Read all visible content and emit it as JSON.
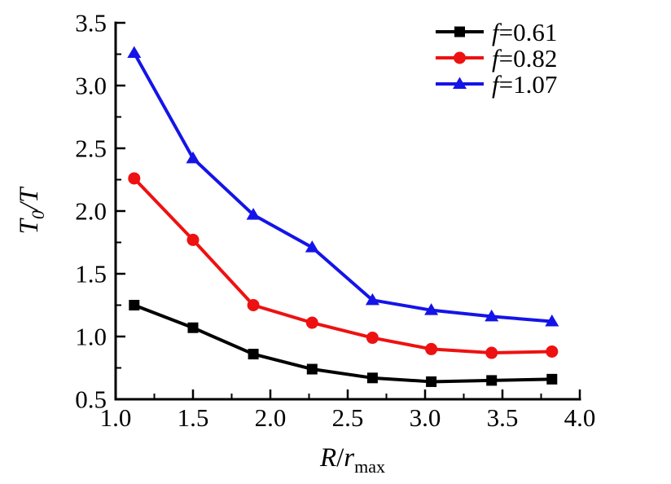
{
  "figure": {
    "background": "#ffffff",
    "axis_color": "#000000"
  },
  "chart_data": {
    "type": "line",
    "title": "",
    "xlabel": {
      "numerator": "R",
      "slash": "/",
      "denominator": "r",
      "subscript": "max"
    },
    "ylabel": {
      "numerator": "T",
      "subscript": "0",
      "slash": "/",
      "denominator": "T"
    },
    "xlim": [
      1.0,
      4.0
    ],
    "ylim": [
      0.5,
      3.5
    ],
    "x_major_ticks": [
      "1.0",
      "1.5",
      "2.0",
      "2.5",
      "3.0",
      "3.5",
      "4.0"
    ],
    "y_major_ticks": [
      "0.5",
      "1.0",
      "1.5",
      "2.0",
      "2.5",
      "3.0",
      "3.5"
    ],
    "x_minor_step": 0.25,
    "y_minor_step": 0.25,
    "grid": false,
    "legend_position": "top-right",
    "x": [
      1.12,
      1.5,
      1.89,
      2.27,
      2.66,
      3.04,
      3.43,
      3.82
    ],
    "series": [
      {
        "name": "f=0.61",
        "legend_var": "f",
        "legend_rest": "=0.61",
        "color": "#000000",
        "marker": "square",
        "values": [
          1.25,
          1.07,
          0.86,
          0.74,
          0.67,
          0.64,
          0.65,
          0.66
        ]
      },
      {
        "name": "f=0.82",
        "legend_var": "f",
        "legend_rest": "=0.82",
        "color": "#ee1111",
        "marker": "circle",
        "values": [
          2.26,
          1.77,
          1.25,
          1.11,
          0.99,
          0.9,
          0.87,
          0.88
        ]
      },
      {
        "name": "f=1.07",
        "legend_var": "f",
        "legend_rest": "=1.07",
        "color": "#1414e8",
        "marker": "triangle",
        "values": [
          3.26,
          2.42,
          1.97,
          1.71,
          1.29,
          1.21,
          1.16,
          1.12
        ]
      }
    ]
  }
}
